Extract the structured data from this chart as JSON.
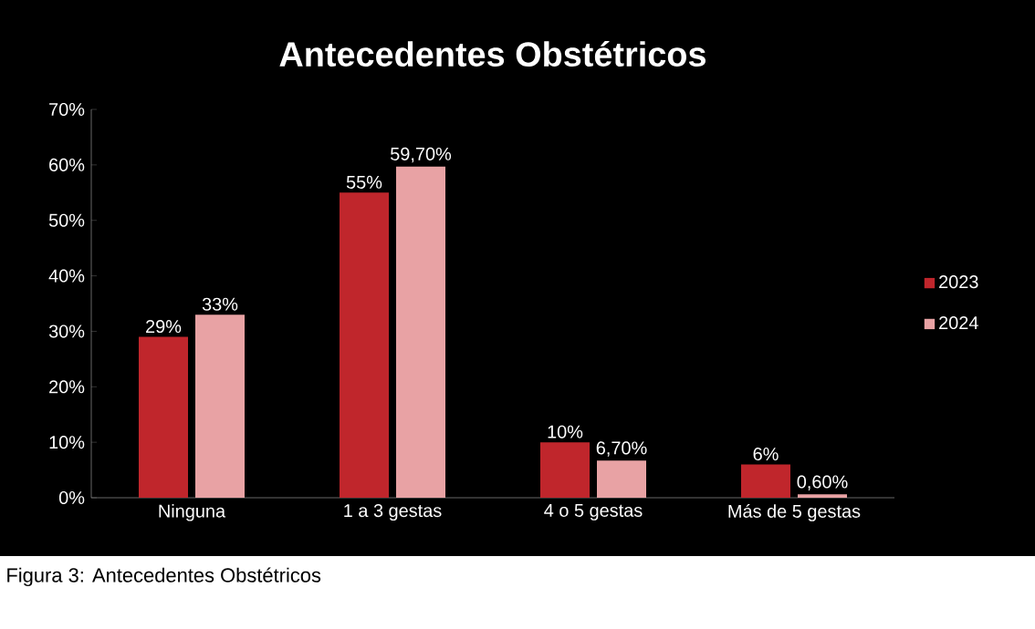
{
  "chart_data": {
    "type": "bar",
    "title": "Antecedentes Obstétricos",
    "categories": [
      "Ninguna",
      "1 a 3 gestas",
      "4 o 5 gestas",
      "Más de 5 gestas"
    ],
    "series": [
      {
        "name": "2023",
        "color": "#c0262c",
        "values": [
          29,
          55,
          10,
          6
        ],
        "value_labels": [
          "29%",
          "55%",
          "10%",
          "6%"
        ]
      },
      {
        "name": "2024",
        "color": "#e8a2a4",
        "values": [
          33,
          59.7,
          6.7,
          0.6
        ],
        "value_labels": [
          "33%",
          "59,70%",
          "6,70%",
          "0,60%"
        ]
      }
    ],
    "ylim": [
      0,
      70
    ],
    "yticks": [
      {
        "value": 0,
        "label": "0%"
      },
      {
        "value": 10,
        "label": "10%"
      },
      {
        "value": 20,
        "label": "20%"
      },
      {
        "value": 30,
        "label": "30%"
      },
      {
        "value": 40,
        "label": "40%"
      },
      {
        "value": 50,
        "label": "50%"
      },
      {
        "value": 60,
        "label": "60%"
      },
      {
        "value": 70,
        "label": "70%"
      }
    ],
    "legend": "right",
    "annotations": [
      "Figura 3: Antecedentes Obstétricos"
    ]
  }
}
